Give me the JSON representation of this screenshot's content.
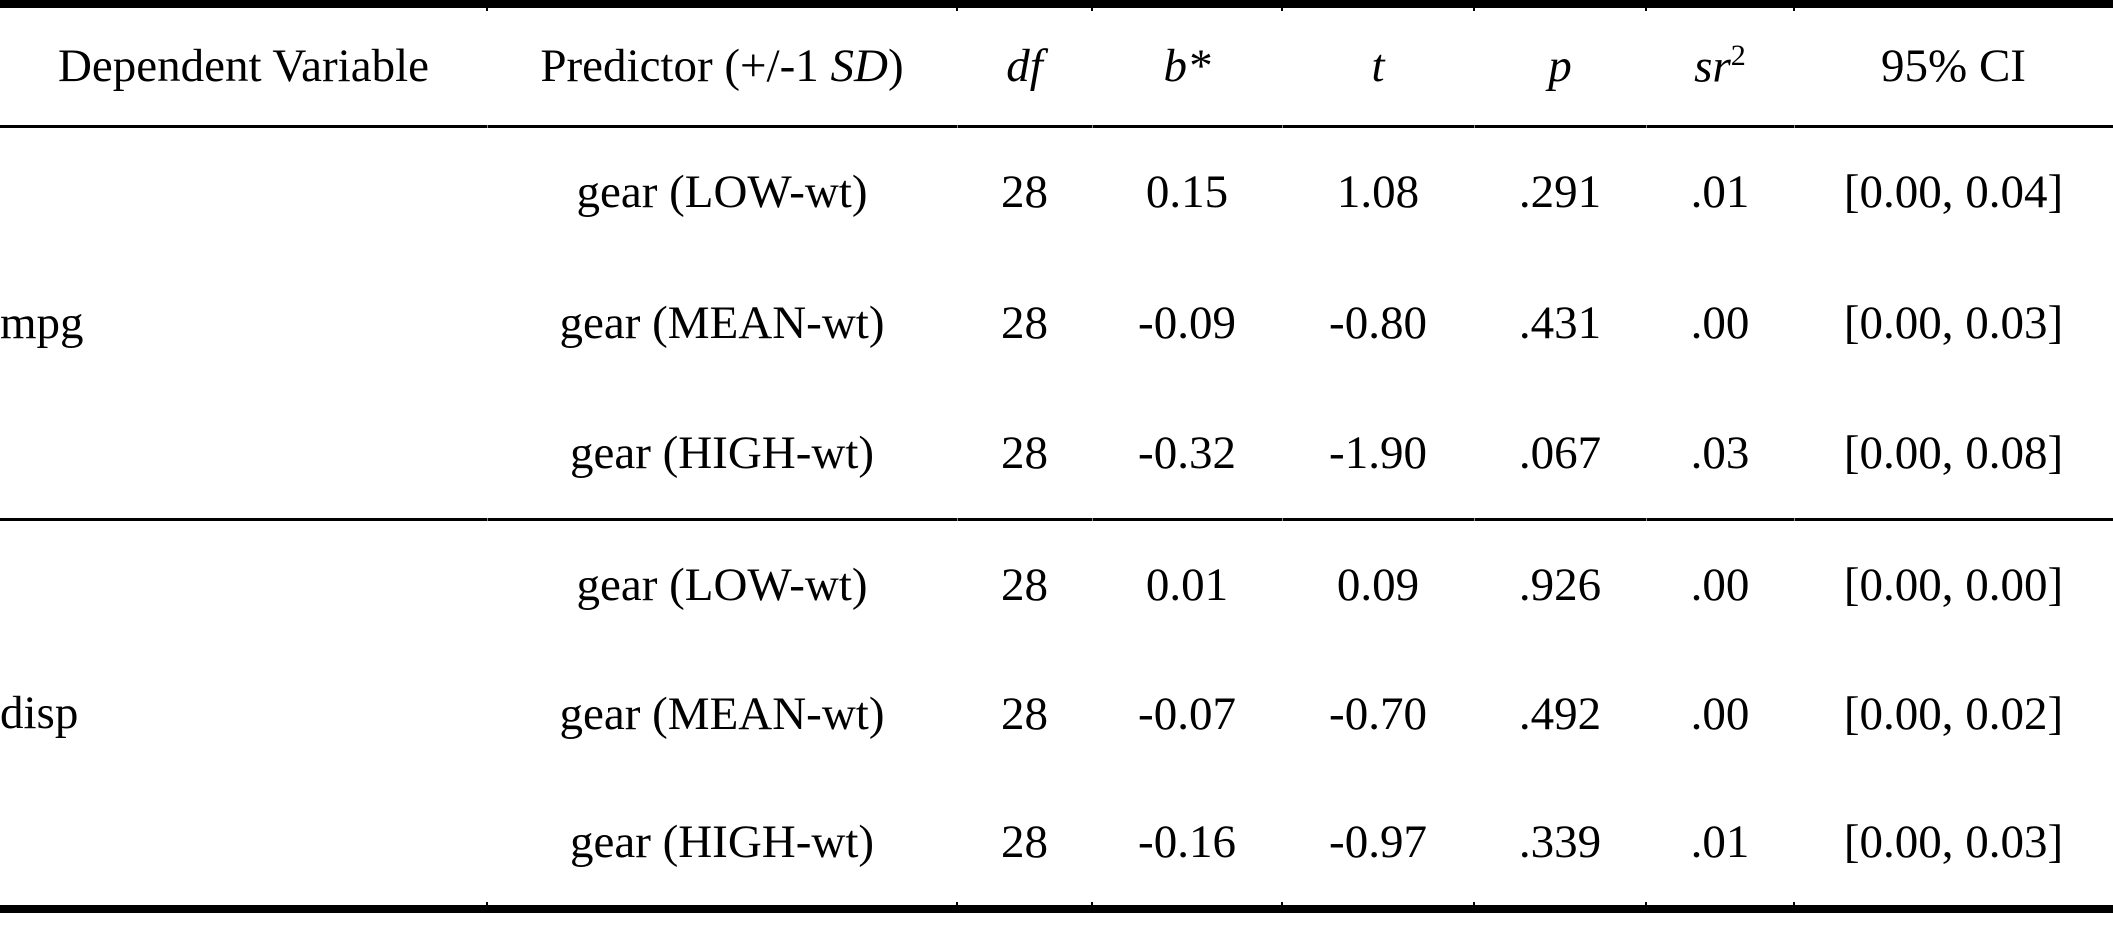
{
  "table": {
    "header": [
      {
        "name": "dependent-variable",
        "segments": [
          {
            "text": "Dependent Variable",
            "style": "normal"
          }
        ]
      },
      {
        "name": "predictor",
        "segments": [
          {
            "text": "Predictor (+/-1 ",
            "style": "normal"
          },
          {
            "text": "SD",
            "style": "italic"
          },
          {
            "text": ")",
            "style": "normal"
          }
        ]
      },
      {
        "name": "df",
        "segments": [
          {
            "text": "df",
            "style": "italic"
          }
        ]
      },
      {
        "name": "b-star",
        "segments": [
          {
            "text": "b",
            "style": "italic"
          },
          {
            "text": "*",
            "style": "italic"
          }
        ]
      },
      {
        "name": "t",
        "segments": [
          {
            "text": "t",
            "style": "italic"
          }
        ]
      },
      {
        "name": "p",
        "segments": [
          {
            "text": "p",
            "style": "italic"
          }
        ]
      },
      {
        "name": "sr2",
        "segments": [
          {
            "text": "sr",
            "style": "italic"
          },
          {
            "text": "2",
            "style": "superscript"
          }
        ]
      },
      {
        "name": "ci",
        "segments": [
          {
            "text": "95% CI",
            "style": "normal"
          }
        ]
      }
    ],
    "sections": [
      {
        "dependent_variable": "mpg",
        "rows": [
          {
            "predictor": "gear (LOW-wt)",
            "df": "28",
            "b_star": "0.15",
            "t": "1.08",
            "p": ".291",
            "sr2": ".01",
            "ci": "[0.00, 0.04]"
          },
          {
            "predictor": "gear (MEAN-wt)",
            "df": "28",
            "b_star": "-0.09",
            "t": "-0.80",
            "p": ".431",
            "sr2": ".00",
            "ci": "[0.00, 0.03]"
          },
          {
            "predictor": "gear (HIGH-wt)",
            "df": "28",
            "b_star": "-0.32",
            "t": "-1.90",
            "p": ".067",
            "sr2": ".03",
            "ci": "[0.00, 0.08]"
          }
        ]
      },
      {
        "dependent_variable": "disp",
        "rows": [
          {
            "predictor": "gear (LOW-wt)",
            "df": "28",
            "b_star": "0.01",
            "t": "0.09",
            "p": ".926",
            "sr2": ".00",
            "ci": "[0.00, 0.00]"
          },
          {
            "predictor": "gear (MEAN-wt)",
            "df": "28",
            "b_star": "-0.07",
            "t": "-0.70",
            "p": ".492",
            "sr2": ".00",
            "ci": "[0.00, 0.02]"
          },
          {
            "predictor": "gear (HIGH-wt)",
            "df": "28",
            "b_star": "-0.16",
            "t": "-0.97",
            "p": ".339",
            "sr2": ".01",
            "ci": "[0.00, 0.03]"
          }
        ]
      }
    ],
    "colors": {
      "text": "#000000",
      "background": "#ffffff",
      "rule": "#000000"
    }
  }
}
